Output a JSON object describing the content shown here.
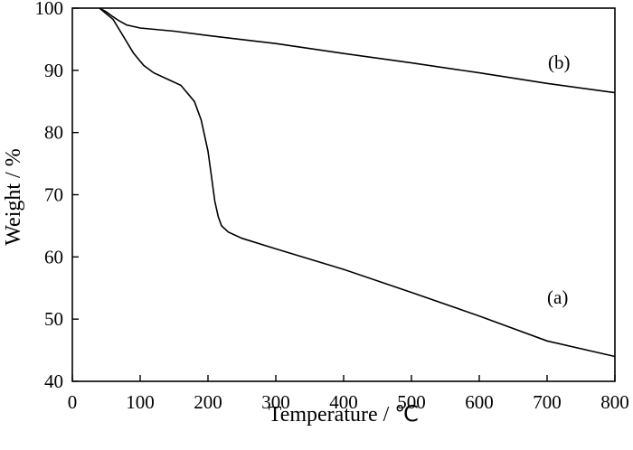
{
  "chart_data": {
    "type": "line",
    "xlabel": "Temperature / ℃",
    "ylabel": "Weight / %",
    "xlim": [
      0,
      800
    ],
    "ylim": [
      40,
      100
    ],
    "xticks": [
      0,
      100,
      200,
      300,
      400,
      500,
      600,
      700,
      800
    ],
    "yticks": [
      40,
      50,
      60,
      70,
      80,
      90,
      100
    ],
    "xticklabels": [
      "0",
      "100",
      "200",
      "300",
      "400",
      "500",
      "600",
      "700",
      "800"
    ],
    "yticklabels": [
      "40",
      "50",
      "60",
      "70",
      "80",
      "90",
      "100"
    ],
    "grid": false,
    "legend": "none",
    "series": [
      {
        "name": "(a)",
        "x": [
          40,
          60,
          75,
          90,
          105,
          120,
          140,
          160,
          180,
          190,
          200,
          205,
          210,
          215,
          220,
          230,
          250,
          300,
          400,
          500,
          600,
          700,
          800
        ],
        "y": [
          100,
          98.2,
          95.5,
          92.8,
          90.8,
          89.6,
          88.6,
          87.6,
          85.0,
          82.0,
          77.0,
          73.0,
          69.0,
          66.5,
          65.0,
          64.0,
          63.0,
          61.3,
          58.0,
          54.3,
          50.5,
          46.5,
          44.0
        ]
      },
      {
        "name": "(b)",
        "x": [
          40,
          50,
          60,
          70,
          80,
          100,
          150,
          200,
          300,
          400,
          500,
          600,
          700,
          800
        ],
        "y": [
          100,
          99.4,
          98.6,
          97.9,
          97.3,
          96.8,
          96.3,
          95.6,
          94.3,
          92.7,
          91.2,
          89.6,
          87.9,
          86.4
        ]
      }
    ]
  }
}
